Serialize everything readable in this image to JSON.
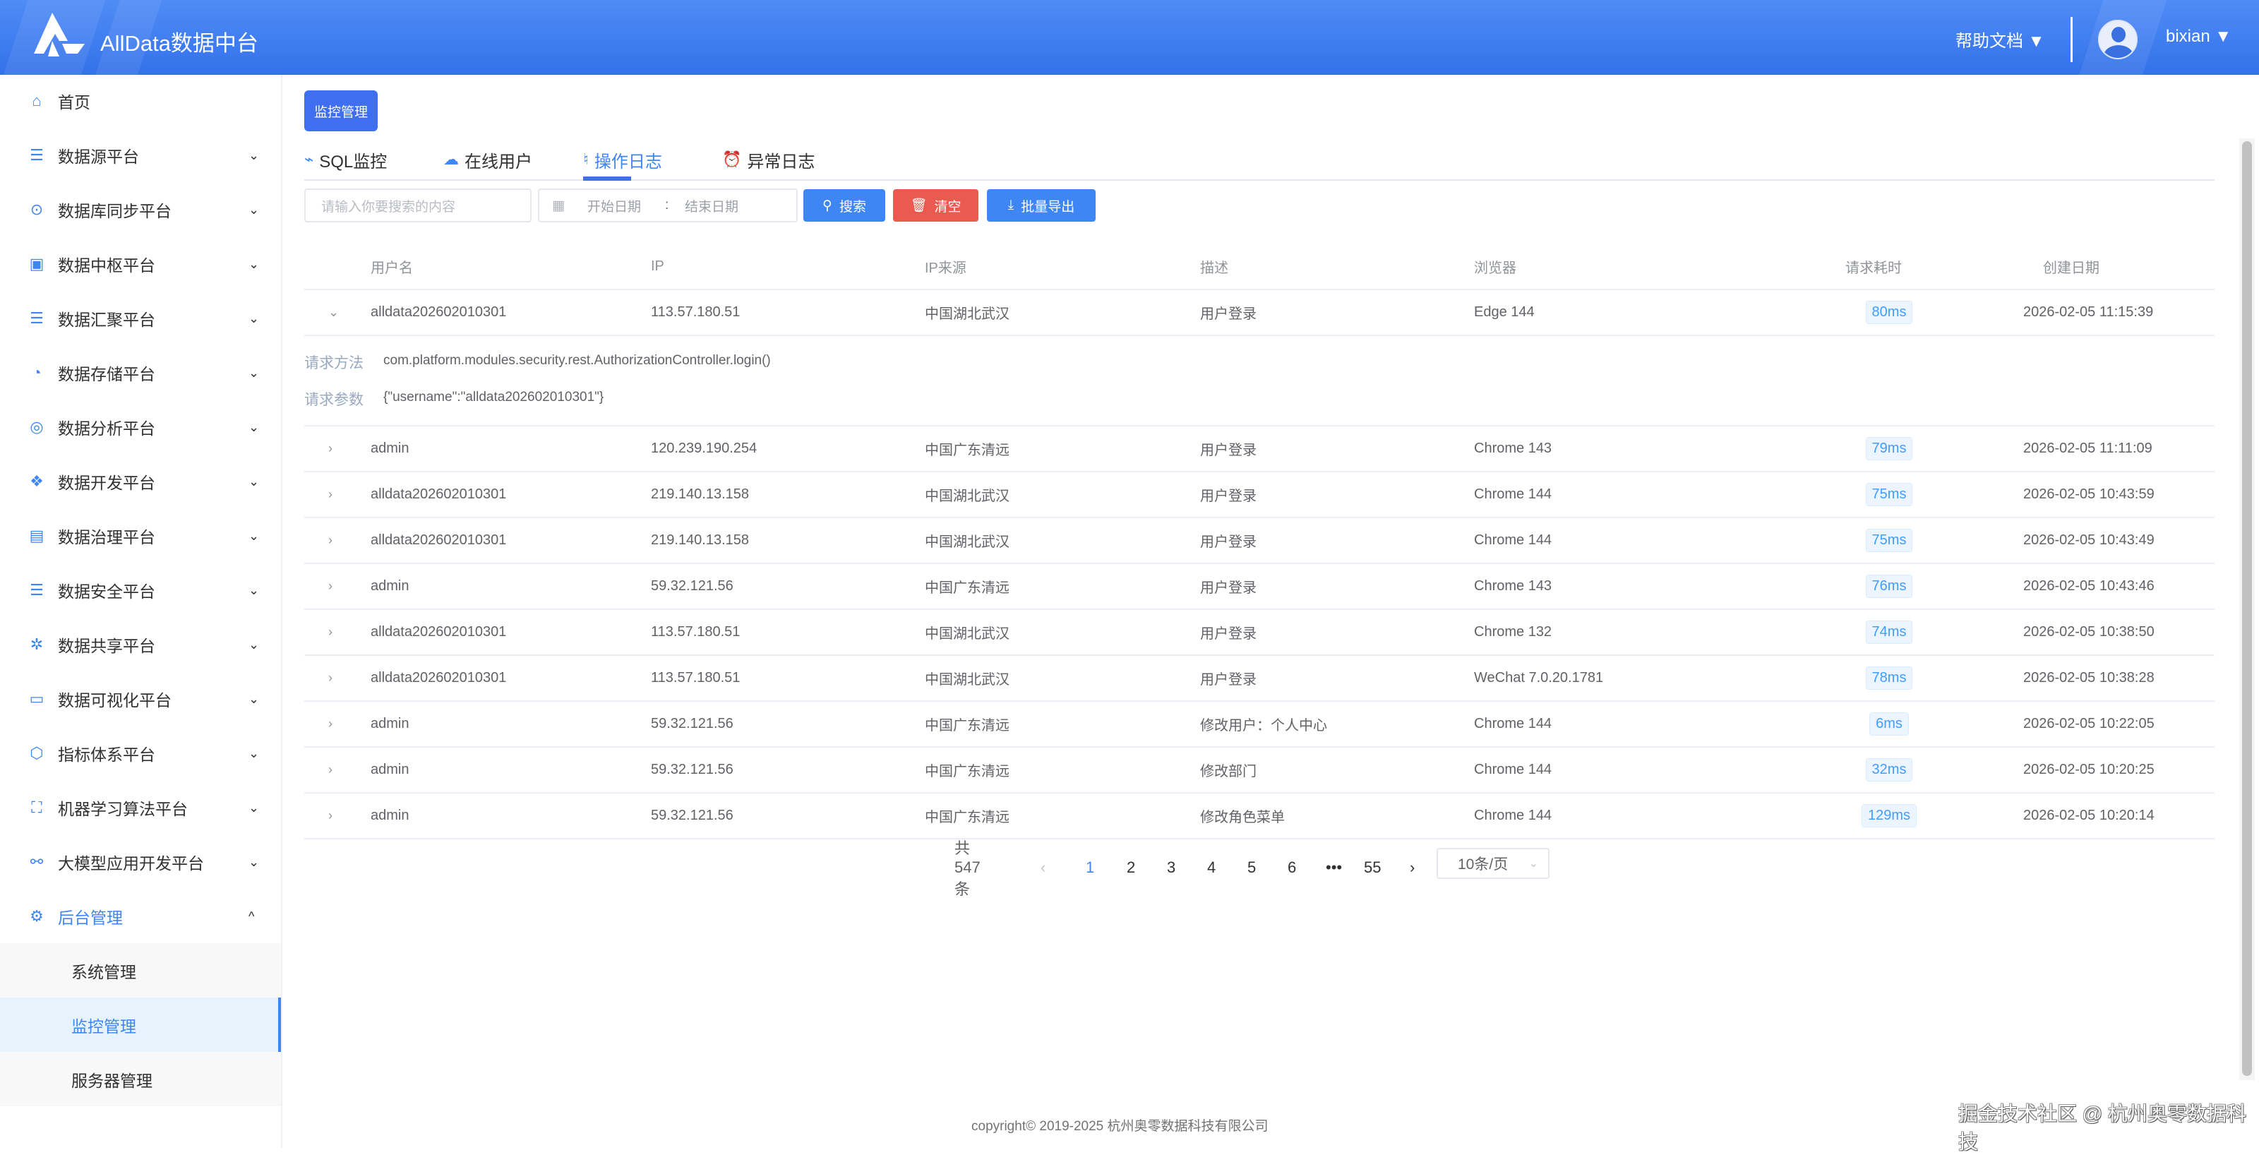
{
  "header": {
    "title": "AllData数据中台",
    "help_label": "帮助文档 ▼",
    "username": "bixian ▼"
  },
  "sidebar": {
    "items": [
      {
        "label": "首页",
        "icon": "home-icon",
        "chevron": ""
      },
      {
        "label": "数据源平台",
        "icon": "database-icon",
        "chevron": "⌄"
      },
      {
        "label": "数据库同步平台",
        "icon": "sync-search-icon",
        "chevron": "⌄"
      },
      {
        "label": "数据中枢平台",
        "icon": "grid-icon",
        "chevron": "⌄"
      },
      {
        "label": "数据汇聚平台",
        "icon": "database-icon",
        "chevron": "⌄"
      },
      {
        "label": "数据存储平台",
        "icon": "chart-circle-icon",
        "chevron": "⌄"
      },
      {
        "label": "数据分析平台",
        "icon": "layers-icon",
        "chevron": "⌄"
      },
      {
        "label": "数据开发平台",
        "icon": "modules-icon",
        "chevron": "⌄"
      },
      {
        "label": "数据治理平台",
        "icon": "calendar-check-icon",
        "chevron": "⌄"
      },
      {
        "label": "数据安全平台",
        "icon": "database-icon",
        "chevron": "⌄"
      },
      {
        "label": "数据共享平台",
        "icon": "share-icon",
        "chevron": "⌄"
      },
      {
        "label": "数据可视化平台",
        "icon": "bi-screen-icon",
        "chevron": "⌄"
      },
      {
        "label": "指标体系平台",
        "icon": "cube-icon",
        "chevron": "⌄"
      },
      {
        "label": "机器学习算法平台",
        "icon": "ml-icon",
        "chevron": "⌄"
      },
      {
        "label": "大模型应用开发平台",
        "icon": "network-icon",
        "chevron": "⌄"
      },
      {
        "label": "后台管理",
        "icon": "gear-icon",
        "chevron": "^"
      }
    ],
    "sub_items": [
      {
        "label": "系统管理"
      },
      {
        "label": "监控管理"
      },
      {
        "label": "服务器管理"
      }
    ]
  },
  "main": {
    "breadcrumb_button": "监控管理",
    "tabs": [
      {
        "label": "SQL监控",
        "icon": "pulse-icon"
      },
      {
        "label": "在线用户",
        "icon": "cloud-icon"
      },
      {
        "label": "操作日志",
        "icon": "log-icon"
      },
      {
        "label": "异常日志",
        "icon": "alarm-icon"
      }
    ],
    "active_tab": "操作日志",
    "filters": {
      "search_placeholder": "请输入你要搜索的内容",
      "start_placeholder": "开始日期",
      "range_separator": ":",
      "end_placeholder": "结束日期",
      "search_button": "搜索",
      "clear_button": "清空",
      "export_button": "批量导出"
    },
    "colors": {
      "primary": "#3f86f5",
      "danger": "#ea5a4e",
      "header": "#3f7ef0"
    },
    "table": {
      "columns": [
        "用户名",
        "IP",
        "IP来源",
        "描述",
        "浏览器",
        "请求耗时",
        "创建日期"
      ],
      "expanded": {
        "method_label": "请求方法",
        "method": "com.platform.modules.security.rest.AuthorizationController.login()",
        "params_label": "请求参数",
        "params": "{\"username\":\"alldata202602010301\"}"
      },
      "rows": [
        {
          "user": "alldata202602010301",
          "ip": "113.57.180.51",
          "source": "中国湖北武汉",
          "desc": "用户登录",
          "browser": "Edge 144",
          "time": "80ms",
          "date": "2026-02-05 11:15:39",
          "expanded": true
        },
        {
          "user": "admin",
          "ip": "120.239.190.254",
          "source": "中国广东清远",
          "desc": "用户登录",
          "browser": "Chrome 143",
          "time": "79ms",
          "date": "2026-02-05 11:11:09"
        },
        {
          "user": "alldata202602010301",
          "ip": "219.140.13.158",
          "source": "中国湖北武汉",
          "desc": "用户登录",
          "browser": "Chrome 144",
          "time": "75ms",
          "date": "2026-02-05 10:43:59"
        },
        {
          "user": "alldata202602010301",
          "ip": "219.140.13.158",
          "source": "中国湖北武汉",
          "desc": "用户登录",
          "browser": "Chrome 144",
          "time": "75ms",
          "date": "2026-02-05 10:43:49"
        },
        {
          "user": "admin",
          "ip": "59.32.121.56",
          "source": "中国广东清远",
          "desc": "用户登录",
          "browser": "Chrome 143",
          "time": "76ms",
          "date": "2026-02-05 10:43:46"
        },
        {
          "user": "alldata202602010301",
          "ip": "113.57.180.51",
          "source": "中国湖北武汉",
          "desc": "用户登录",
          "browser": "Chrome 132",
          "time": "74ms",
          "date": "2026-02-05 10:38:50"
        },
        {
          "user": "alldata202602010301",
          "ip": "113.57.180.51",
          "source": "中国湖北武汉",
          "desc": "用户登录",
          "browser": "WeChat 7.0.20.1781",
          "time": "78ms",
          "date": "2026-02-05 10:38:28"
        },
        {
          "user": "admin",
          "ip": "59.32.121.56",
          "source": "中国广东清远",
          "desc": "修改用户：个人中心",
          "browser": "Chrome 144",
          "time": "6ms",
          "date": "2026-02-05 10:22:05"
        },
        {
          "user": "admin",
          "ip": "59.32.121.56",
          "source": "中国广东清远",
          "desc": "修改部门",
          "browser": "Chrome 144",
          "time": "32ms",
          "date": "2026-02-05 10:20:25"
        },
        {
          "user": "admin",
          "ip": "59.32.121.56",
          "source": "中国广东清远",
          "desc": "修改角色菜单",
          "browser": "Chrome 144",
          "time": "129ms",
          "date": "2026-02-05 10:20:14"
        }
      ]
    },
    "pagination": {
      "total": "共 547 条",
      "pages": [
        "1",
        "2",
        "3",
        "4",
        "5",
        "6",
        "•••",
        "55"
      ],
      "current": "1",
      "page_size": "10条/页"
    }
  },
  "footer": {
    "copyright": "copyright© 2019-2025 杭州奥零数据科技有限公司"
  },
  "watermark": "掘金技术社区 @ 杭州奥零数据科技"
}
